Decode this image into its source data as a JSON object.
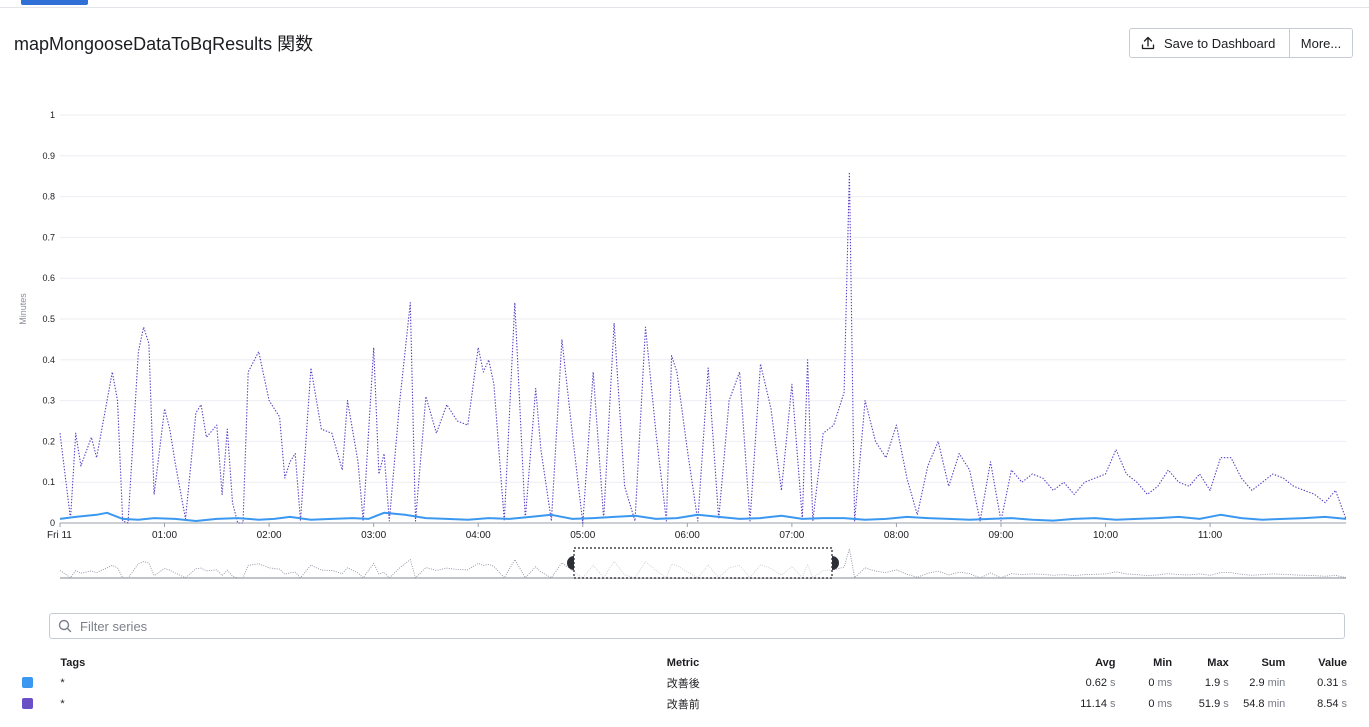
{
  "header": {
    "title": "mapMongooseDataToBqResults 関数",
    "save_label": "Save to Dashboard",
    "more_label": "More..."
  },
  "filter": {
    "placeholder": "Filter series"
  },
  "legend": {
    "headers": {
      "tags": "Tags",
      "metric": "Metric",
      "avg": "Avg",
      "min": "Min",
      "max": "Max",
      "sum": "Sum",
      "value": "Value"
    },
    "rows": [
      {
        "color": "#3b98f0",
        "tag": "*",
        "metric": "改善後",
        "avg": "0.62",
        "avg_unit": "s",
        "min": "0",
        "min_unit": "ms",
        "max": "1.9",
        "max_unit": "s",
        "sum": "2.9",
        "sum_unit": "min",
        "value": "0.31",
        "value_unit": "s"
      },
      {
        "color": "#6a4fc6",
        "tag": "*",
        "metric": "改善前",
        "avg": "11.14",
        "avg_unit": "s",
        "min": "0",
        "min_unit": "ms",
        "max": "51.9",
        "max_unit": "s",
        "sum": "54.8",
        "sum_unit": "min",
        "value": "8.54",
        "value_unit": "s"
      }
    ]
  },
  "chart_data": {
    "type": "line",
    "ylabel": "Minutes",
    "ylim": [
      0,
      1
    ],
    "yticks": [
      "0",
      "0.1",
      "0.2",
      "0.3",
      "0.4",
      "0.5",
      "0.6",
      "0.7",
      "0.8",
      "0.9",
      "1"
    ],
    "xlim": [
      0,
      12.3
    ],
    "xtick_labels": [
      "Fri 11",
      "01:00",
      "02:00",
      "03:00",
      "04:00",
      "05:00",
      "06:00",
      "07:00",
      "08:00",
      "09:00",
      "10:00",
      "11:00"
    ],
    "xtick_positions": [
      0,
      1,
      2,
      3,
      4,
      5,
      6,
      7,
      8,
      9,
      10,
      11
    ],
    "grid": true,
    "series": [
      {
        "name": "改善後",
        "color": "#3b98f0",
        "style": "solid",
        "x": [
          0,
          0.15,
          0.35,
          0.45,
          0.6,
          0.75,
          0.9,
          1.1,
          1.3,
          1.5,
          1.7,
          1.9,
          2.05,
          2.2,
          2.4,
          2.6,
          2.8,
          2.95,
          3.1,
          3.3,
          3.5,
          3.7,
          3.9,
          4.1,
          4.3,
          4.5,
          4.7,
          4.9,
          5.1,
          5.3,
          5.5,
          5.7,
          5.9,
          6.1,
          6.3,
          6.5,
          6.7,
          6.9,
          7.1,
          7.3,
          7.5,
          7.7,
          7.9,
          8.1,
          8.3,
          8.5,
          8.7,
          8.9,
          9.1,
          9.3,
          9.5,
          9.7,
          9.9,
          10.1,
          10.3,
          10.5,
          10.7,
          10.9,
          11.1,
          11.3,
          11.5,
          11.7,
          11.9,
          12.1,
          12.3
        ],
        "y": [
          0.01,
          0.015,
          0.02,
          0.025,
          0.01,
          0.008,
          0.012,
          0.01,
          0.005,
          0.01,
          0.012,
          0.008,
          0.01,
          0.015,
          0.008,
          0.01,
          0.012,
          0.01,
          0.025,
          0.02,
          0.012,
          0.01,
          0.008,
          0.012,
          0.01,
          0.015,
          0.02,
          0.01,
          0.012,
          0.015,
          0.018,
          0.01,
          0.012,
          0.02,
          0.015,
          0.01,
          0.012,
          0.018,
          0.01,
          0.012,
          0.012,
          0.008,
          0.01,
          0.015,
          0.012,
          0.01,
          0.008,
          0.01,
          0.012,
          0.008,
          0.006,
          0.01,
          0.012,
          0.008,
          0.01,
          0.012,
          0.015,
          0.01,
          0.02,
          0.012,
          0.008,
          0.01,
          0.012,
          0.015,
          0.01
        ]
      },
      {
        "name": "改善前",
        "color": "#5b3fc2",
        "style": "dotted",
        "x": [
          0,
          0.1,
          0.15,
          0.2,
          0.3,
          0.35,
          0.4,
          0.5,
          0.55,
          0.6,
          0.65,
          0.75,
          0.8,
          0.85,
          0.9,
          1.0,
          1.05,
          1.1,
          1.2,
          1.3,
          1.35,
          1.4,
          1.5,
          1.55,
          1.6,
          1.65,
          1.7,
          1.75,
          1.8,
          1.9,
          2.0,
          2.1,
          2.15,
          2.2,
          2.25,
          2.3,
          2.4,
          2.5,
          2.6,
          2.7,
          2.75,
          2.85,
          2.9,
          3.0,
          3.05,
          3.1,
          3.15,
          3.25,
          3.35,
          3.4,
          3.5,
          3.6,
          3.7,
          3.8,
          3.9,
          4.0,
          4.05,
          4.1,
          4.15,
          4.25,
          4.35,
          4.45,
          4.55,
          4.6,
          4.7,
          4.8,
          4.9,
          5.0,
          5.1,
          5.2,
          5.3,
          5.4,
          5.5,
          5.6,
          5.7,
          5.8,
          5.85,
          5.9,
          6.0,
          6.1,
          6.2,
          6.3,
          6.4,
          6.5,
          6.6,
          6.7,
          6.8,
          6.9,
          7.0,
          7.1,
          7.15,
          7.2,
          7.3,
          7.4,
          7.5,
          7.55,
          7.6,
          7.7,
          7.8,
          7.9,
          8.0,
          8.1,
          8.2,
          8.3,
          8.4,
          8.5,
          8.6,
          8.7,
          8.8,
          8.9,
          9.0,
          9.1,
          9.2,
          9.3,
          9.4,
          9.5,
          9.6,
          9.7,
          9.8,
          9.9,
          10.0,
          10.1,
          10.2,
          10.3,
          10.4,
          10.5,
          10.6,
          10.7,
          10.8,
          10.9,
          11.0,
          11.1,
          11.2,
          11.3,
          11.4,
          11.5,
          11.6,
          11.7,
          11.8,
          11.9,
          12.0,
          12.1,
          12.2,
          12.3
        ],
        "y": [
          0.22,
          0.01,
          0.22,
          0.14,
          0.21,
          0.16,
          0.23,
          0.37,
          0.3,
          0.005,
          0.0,
          0.42,
          0.48,
          0.44,
          0.07,
          0.28,
          0.23,
          0.15,
          0.01,
          0.27,
          0.29,
          0.21,
          0.24,
          0.07,
          0.23,
          0.05,
          0.0,
          0.0,
          0.37,
          0.42,
          0.3,
          0.26,
          0.11,
          0.15,
          0.17,
          0.005,
          0.38,
          0.23,
          0.22,
          0.13,
          0.3,
          0.15,
          0.005,
          0.43,
          0.12,
          0.17,
          0.005,
          0.3,
          0.54,
          0.005,
          0.31,
          0.22,
          0.29,
          0.25,
          0.24,
          0.43,
          0.37,
          0.4,
          0.34,
          0.005,
          0.54,
          0.01,
          0.33,
          0.18,
          0.005,
          0.45,
          0.22,
          0.0,
          0.37,
          0.01,
          0.49,
          0.09,
          0.005,
          0.48,
          0.22,
          0.005,
          0.41,
          0.37,
          0.18,
          0.005,
          0.38,
          0.01,
          0.3,
          0.37,
          0.005,
          0.39,
          0.28,
          0.08,
          0.34,
          0.01,
          0.4,
          0.005,
          0.22,
          0.24,
          0.32,
          0.86,
          0.005,
          0.3,
          0.2,
          0.16,
          0.24,
          0.11,
          0.02,
          0.14,
          0.2,
          0.09,
          0.17,
          0.13,
          0.005,
          0.15,
          0.005,
          0.13,
          0.1,
          0.12,
          0.11,
          0.08,
          0.1,
          0.07,
          0.1,
          0.11,
          0.12,
          0.18,
          0.12,
          0.1,
          0.07,
          0.09,
          0.13,
          0.1,
          0.09,
          0.12,
          0.08,
          0.16,
          0.16,
          0.11,
          0.08,
          0.1,
          0.12,
          0.11,
          0.09,
          0.08,
          0.07,
          0.05,
          0.08,
          0.01
        ]
      }
    ]
  }
}
